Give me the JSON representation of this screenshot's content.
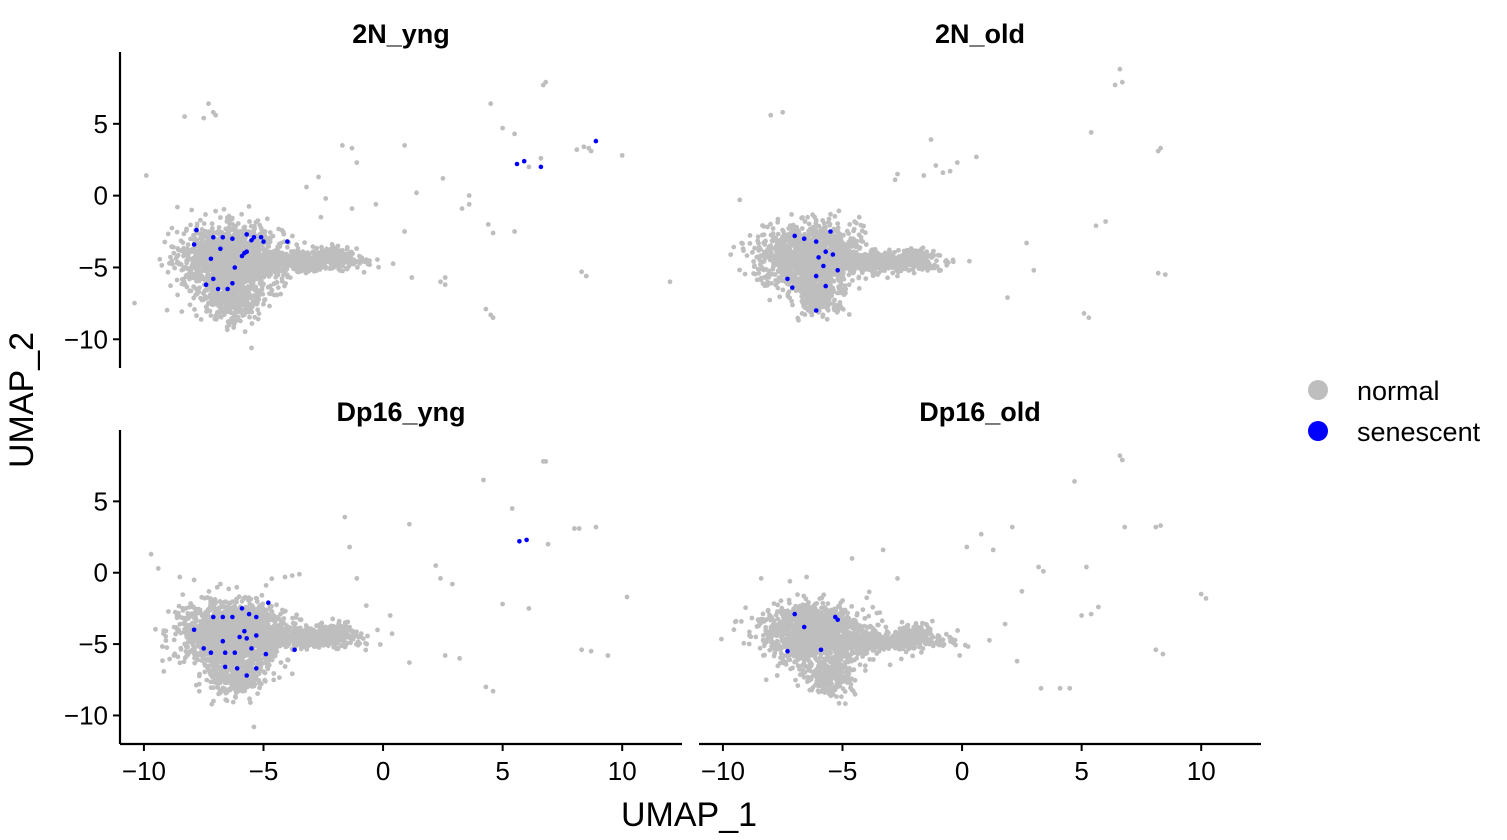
{
  "chart_data": {
    "type": "scatter",
    "xlabel": "UMAP_1",
    "ylabel": "UMAP_2",
    "xlim": [
      -11,
      12.5
    ],
    "ylim": [
      -12,
      10
    ],
    "x_ticks": [
      -10,
      -5,
      0,
      5,
      10
    ],
    "x_tick_labels": [
      "−10",
      "−5",
      "0",
      "5",
      "10"
    ],
    "y_ticks": [
      -10,
      -5,
      0,
      5
    ],
    "y_tick_labels": [
      "−10",
      "−5",
      "0",
      "5"
    ],
    "grid": false,
    "legend_position": "right",
    "legend": [
      {
        "label": "normal",
        "color": "#bebebe"
      },
      {
        "label": "senescent",
        "color": "#0000ff"
      }
    ],
    "panels": [
      {
        "title": "2N_yng",
        "normal_clusters": [
          {
            "cx": -6.3,
            "cy": -4.4,
            "rx": 1.9,
            "ry": 2.0,
            "n": 1500
          },
          {
            "cx": -6.3,
            "cy": -7.2,
            "rx": 1.2,
            "ry": 1.6,
            "n": 350
          },
          {
            "cx": -3.4,
            "cy": -4.6,
            "rx": 2.2,
            "ry": 0.6,
            "n": 550
          },
          {
            "cx": -1.9,
            "cy": -4.2,
            "rx": 0.7,
            "ry": 0.6,
            "n": 120
          }
        ],
        "normal_points": [
          [
            -9.9,
            1.4
          ],
          [
            -8.3,
            5.5
          ],
          [
            -7.3,
            6.4
          ],
          [
            -7.1,
            5.8
          ],
          [
            -7.0,
            5.6
          ],
          [
            -7.5,
            5.4
          ],
          [
            -1.7,
            3.5
          ],
          [
            -1.3,
            3.3
          ],
          [
            -1.1,
            2.3
          ],
          [
            -2.7,
            1.3
          ],
          [
            -3.2,
            0.6
          ],
          [
            -2.4,
            -0.2
          ],
          [
            -1.3,
            -0.9
          ],
          [
            -2.6,
            -1.5
          ],
          [
            0.9,
            3.5
          ],
          [
            1.4,
            0.2
          ],
          [
            2.5,
            1.2
          ],
          [
            3.6,
            0.0
          ],
          [
            3.3,
            -0.9
          ],
          [
            3.6,
            -0.6
          ],
          [
            4.4,
            -2.0
          ],
          [
            4.6,
            -2.6
          ],
          [
            5.5,
            -2.5
          ],
          [
            4.5,
            6.4
          ],
          [
            5.0,
            4.7
          ],
          [
            5.5,
            4.3
          ],
          [
            6.7,
            7.7
          ],
          [
            6.8,
            7.9
          ],
          [
            6.1,
            2.0
          ],
          [
            6.6,
            2.6
          ],
          [
            8.1,
            3.2
          ],
          [
            8.4,
            3.4
          ],
          [
            8.6,
            3.3
          ],
          [
            8.7,
            3.1
          ],
          [
            8.3,
            -5.3
          ],
          [
            8.5,
            -5.6
          ],
          [
            10.0,
            2.8
          ],
          [
            12.0,
            -6.0
          ],
          [
            4.3,
            -7.9
          ],
          [
            4.5,
            -8.3
          ],
          [
            4.6,
            -8.5
          ],
          [
            2.6,
            -5.7
          ],
          [
            1.2,
            -5.7
          ],
          [
            2.4,
            -6.0
          ],
          [
            2.6,
            -6.2
          ],
          [
            0.9,
            -2.5
          ],
          [
            -0.3,
            -0.6
          ],
          [
            -5.5,
            -10.6
          ],
          [
            -8.6,
            -0.8
          ],
          [
            -8.0,
            -1.0
          ]
        ],
        "senescent_points": [
          [
            -7.8,
            -2.4
          ],
          [
            -7.9,
            -3.4
          ],
          [
            -7.1,
            -2.9
          ],
          [
            -6.7,
            -2.9
          ],
          [
            -6.3,
            -3.0
          ],
          [
            -5.7,
            -2.7
          ],
          [
            -5.4,
            -2.9
          ],
          [
            -5.1,
            -2.9
          ],
          [
            -5.5,
            -3.1
          ],
          [
            -5.0,
            -3.2
          ],
          [
            -4.0,
            -3.2
          ],
          [
            -5.7,
            -3.9
          ],
          [
            -5.9,
            -4.2
          ],
          [
            -6.8,
            -3.7
          ],
          [
            -7.2,
            -4.4
          ],
          [
            -7.1,
            -5.8
          ],
          [
            -6.2,
            -5.0
          ],
          [
            -7.4,
            -6.2
          ],
          [
            -6.9,
            -6.5
          ],
          [
            -6.5,
            -6.5
          ],
          [
            -6.3,
            -6.1
          ],
          [
            -5.8,
            -4.0
          ],
          [
            5.6,
            2.2
          ],
          [
            5.9,
            2.4
          ],
          [
            6.6,
            2.0
          ],
          [
            8.9,
            3.8
          ]
        ]
      },
      {
        "title": "2N_old",
        "normal_clusters": [
          {
            "cx": -6.4,
            "cy": -4.2,
            "rx": 1.8,
            "ry": 1.9,
            "n": 1300
          },
          {
            "cx": -6.0,
            "cy": -6.9,
            "rx": 1.0,
            "ry": 1.2,
            "n": 260
          },
          {
            "cx": -3.6,
            "cy": -4.6,
            "rx": 2.3,
            "ry": 0.6,
            "n": 520
          },
          {
            "cx": -2.0,
            "cy": -4.3,
            "rx": 0.6,
            "ry": 0.6,
            "n": 100
          }
        ],
        "normal_points": [
          [
            -9.3,
            -0.3
          ],
          [
            -8.0,
            5.6
          ],
          [
            -7.5,
            5.8
          ],
          [
            -2.7,
            1.5
          ],
          [
            -2.8,
            1.1
          ],
          [
            -1.3,
            3.9
          ],
          [
            -1.1,
            2.1
          ],
          [
            -0.5,
            1.7
          ],
          [
            -0.2,
            2.3
          ],
          [
            0.6,
            2.7
          ],
          [
            -0.8,
            1.6
          ],
          [
            -1.6,
            1.4
          ],
          [
            5.4,
            4.4
          ],
          [
            6.6,
            8.8
          ],
          [
            6.7,
            7.9
          ],
          [
            6.4,
            7.7
          ],
          [
            8.2,
            3.1
          ],
          [
            8.3,
            3.3
          ],
          [
            8.2,
            -5.4
          ],
          [
            8.5,
            -5.5
          ],
          [
            5.1,
            -8.2
          ],
          [
            5.3,
            -8.5
          ],
          [
            5.6,
            -2.1
          ],
          [
            6.0,
            -1.8
          ],
          [
            2.7,
            -3.3
          ],
          [
            3.0,
            -5.2
          ],
          [
            1.9,
            -7.1
          ],
          [
            -5.5,
            -1.3
          ],
          [
            -4.3,
            -1.5
          ],
          [
            -4.7,
            -2.0
          ]
        ],
        "senescent_points": [
          [
            -7.0,
            -2.8
          ],
          [
            -6.6,
            -3.0
          ],
          [
            -6.1,
            -3.2
          ],
          [
            -5.5,
            -2.5
          ],
          [
            -5.7,
            -3.9
          ],
          [
            -5.4,
            -4.1
          ],
          [
            -6.0,
            -4.3
          ],
          [
            -5.8,
            -4.9
          ],
          [
            -5.2,
            -5.2
          ],
          [
            -6.1,
            -5.6
          ],
          [
            -5.7,
            -6.3
          ],
          [
            -7.3,
            -5.8
          ],
          [
            -7.1,
            -6.4
          ],
          [
            -6.1,
            -8.0
          ]
        ]
      },
      {
        "title": "Dp16_yng",
        "normal_clusters": [
          {
            "cx": -6.3,
            "cy": -4.3,
            "rx": 2.0,
            "ry": 2.0,
            "n": 1500
          },
          {
            "cx": -6.2,
            "cy": -7.1,
            "rx": 1.2,
            "ry": 1.4,
            "n": 330
          },
          {
            "cx": -3.4,
            "cy": -4.5,
            "rx": 2.2,
            "ry": 0.6,
            "n": 550
          },
          {
            "cx": -2.0,
            "cy": -4.2,
            "rx": 0.6,
            "ry": 0.6,
            "n": 120
          }
        ],
        "normal_points": [
          [
            -9.7,
            1.3
          ],
          [
            -9.4,
            0.3
          ],
          [
            -3.5,
            -0.1
          ],
          [
            -3.8,
            -0.2
          ],
          [
            -4.1,
            -0.3
          ],
          [
            -1.6,
            3.9
          ],
          [
            -1.4,
            1.8
          ],
          [
            -1.1,
            -0.4
          ],
          [
            -0.7,
            -2.3
          ],
          [
            0.3,
            -3.0
          ],
          [
            1.1,
            3.4
          ],
          [
            2.2,
            0.5
          ],
          [
            2.4,
            -0.4
          ],
          [
            2.9,
            -0.8
          ],
          [
            4.2,
            6.5
          ],
          [
            5.4,
            4.5
          ],
          [
            5.0,
            -2.2
          ],
          [
            6.1,
            -2.5
          ],
          [
            6.7,
            7.8
          ],
          [
            6.8,
            7.8
          ],
          [
            6.9,
            2.0
          ],
          [
            8.0,
            3.1
          ],
          [
            8.2,
            3.1
          ],
          [
            8.9,
            3.2
          ],
          [
            8.3,
            -5.4
          ],
          [
            8.7,
            -5.5
          ],
          [
            9.4,
            -5.8
          ],
          [
            10.2,
            -1.7
          ],
          [
            4.3,
            -8.0
          ],
          [
            4.6,
            -8.3
          ],
          [
            2.6,
            -5.8
          ],
          [
            3.2,
            -6.0
          ],
          [
            1.1,
            -6.3
          ],
          [
            -5.4,
            -10.8
          ],
          [
            -8.5,
            -0.3
          ],
          [
            -7.9,
            -0.5
          ]
        ],
        "senescent_points": [
          [
            -7.9,
            -4.0
          ],
          [
            -7.5,
            -5.3
          ],
          [
            -7.2,
            -5.6
          ],
          [
            -6.7,
            -3.1
          ],
          [
            -7.1,
            -3.1
          ],
          [
            -6.3,
            -3.1
          ],
          [
            -5.9,
            -2.5
          ],
          [
            -5.6,
            -2.9
          ],
          [
            -5.3,
            -3.1
          ],
          [
            -4.8,
            -2.1
          ],
          [
            -6.0,
            -4.5
          ],
          [
            -5.7,
            -4.6
          ],
          [
            -5.8,
            -4.1
          ],
          [
            -5.3,
            -4.4
          ],
          [
            -6.7,
            -4.8
          ],
          [
            -6.6,
            -5.6
          ],
          [
            -6.2,
            -5.6
          ],
          [
            -5.5,
            -5.3
          ],
          [
            -4.9,
            -5.7
          ],
          [
            -3.7,
            -5.4
          ],
          [
            -6.6,
            -6.6
          ],
          [
            -6.1,
            -6.7
          ],
          [
            -5.3,
            -6.7
          ],
          [
            -5.7,
            -7.2
          ],
          [
            5.7,
            2.2
          ],
          [
            6.0,
            2.3
          ]
        ]
      },
      {
        "title": "Dp16_old",
        "normal_clusters": [
          {
            "cx": -6.2,
            "cy": -4.3,
            "rx": 2.0,
            "ry": 1.8,
            "n": 1300
          },
          {
            "cx": -5.6,
            "cy": -7.2,
            "rx": 1.0,
            "ry": 1.3,
            "n": 260
          },
          {
            "cx": -3.4,
            "cy": -4.8,
            "rx": 2.2,
            "ry": 0.6,
            "n": 520
          },
          {
            "cx": -2.0,
            "cy": -4.2,
            "rx": 0.6,
            "ry": 0.6,
            "n": 100
          }
        ],
        "normal_points": [
          [
            -8.4,
            -0.4
          ],
          [
            -4.6,
            1.0
          ],
          [
            -3.3,
            1.6
          ],
          [
            -2.7,
            -0.4
          ],
          [
            0.2,
            1.8
          ],
          [
            0.8,
            2.7
          ],
          [
            1.3,
            1.6
          ],
          [
            2.1,
            3.2
          ],
          [
            3.2,
            0.4
          ],
          [
            3.4,
            0.1
          ],
          [
            4.7,
            6.4
          ],
          [
            5.2,
            0.4
          ],
          [
            5.7,
            -2.4
          ],
          [
            5.0,
            -3.0
          ],
          [
            5.4,
            -2.9
          ],
          [
            6.6,
            8.2
          ],
          [
            6.7,
            7.9
          ],
          [
            6.8,
            3.2
          ],
          [
            8.1,
            3.2
          ],
          [
            8.3,
            3.3
          ],
          [
            8.1,
            -5.4
          ],
          [
            8.4,
            -5.7
          ],
          [
            10.0,
            -1.5
          ],
          [
            10.2,
            -1.8
          ],
          [
            4.1,
            -8.1
          ],
          [
            4.5,
            -8.1
          ],
          [
            3.3,
            -8.1
          ],
          [
            1.8,
            -3.6
          ],
          [
            2.5,
            -1.3
          ],
          [
            2.3,
            -6.2
          ],
          [
            -0.1,
            -5.8
          ],
          [
            -6.5,
            -0.3
          ],
          [
            -7.2,
            -0.6
          ]
        ],
        "senescent_points": [
          [
            -7.0,
            -2.9
          ],
          [
            -6.6,
            -3.8
          ],
          [
            -5.3,
            -3.1
          ],
          [
            -5.2,
            -3.3
          ],
          [
            -7.3,
            -5.5
          ],
          [
            -5.9,
            -5.4
          ]
        ]
      }
    ]
  }
}
